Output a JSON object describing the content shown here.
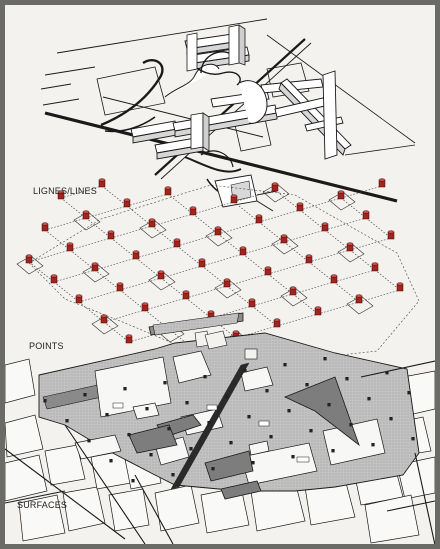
{
  "labels": {
    "lines": "LIGNES/LINES",
    "points": "POINTS",
    "surfaces": "SURFACES"
  },
  "colors": {
    "paper": "#f4f2ee",
    "folie_red": "#a3231d",
    "surface_gray": "#bdbdbd",
    "line_dark": "#1a1a1a"
  }
}
